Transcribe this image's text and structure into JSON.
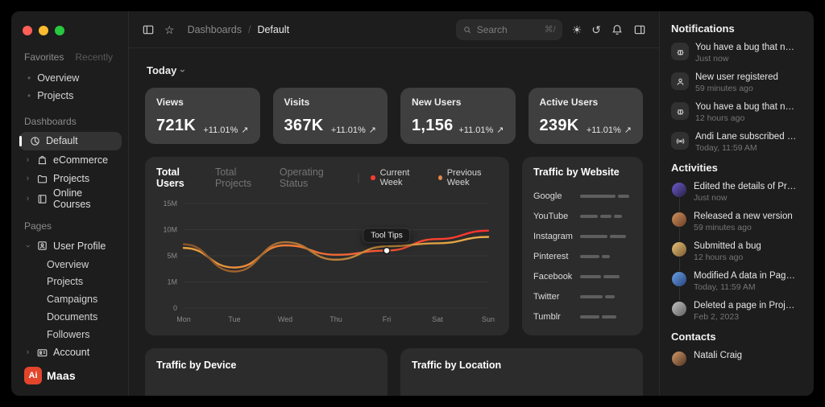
{
  "icons": {
    "trend_up": "↗",
    "sun": "☀",
    "history": "↺",
    "star": "☆",
    "chevron": "›",
    "bullet": "•",
    "divider": "|"
  },
  "window": {
    "traffic_lights": {
      "close": "#ff5f57",
      "minimize": "#febc2e",
      "zoom": "#28c840"
    }
  },
  "sidebar": {
    "tabs": {
      "favorites": "Favorites",
      "recently": "Recently"
    },
    "favorites_items": [
      {
        "label": "Overview"
      },
      {
        "label": "Projects"
      }
    ],
    "dashboards": {
      "title": "Dashboards",
      "items": [
        {
          "label": "Default"
        },
        {
          "label": "eCommerce"
        },
        {
          "label": "Projects"
        },
        {
          "label": "Online Courses"
        }
      ]
    },
    "pages": {
      "title": "Pages",
      "user_profile": {
        "label": "User Profile",
        "children": [
          {
            "label": "Overview"
          },
          {
            "label": "Projects"
          },
          {
            "label": "Campaigns"
          },
          {
            "label": "Documents"
          },
          {
            "label": "Followers"
          }
        ]
      },
      "account": {
        "label": "Account"
      }
    },
    "logo": {
      "badge": "Ai",
      "name": "Maas",
      "badge_color": "#e2452c"
    }
  },
  "header": {
    "breadcrumb": {
      "section": "Dashboards",
      "separator": "/",
      "current": "Default"
    },
    "search": {
      "placeholder": "Search",
      "shortcut": "⌘/"
    }
  },
  "main": {
    "period_filter": "Today",
    "stat_cards": [
      {
        "label": "Views",
        "value": "721K",
        "delta": "+11.01%"
      },
      {
        "label": "Visits",
        "value": "367K",
        "delta": "+11.01%"
      },
      {
        "label": "New Users",
        "value": "1,156",
        "delta": "+11.01%"
      },
      {
        "label": "Active Users",
        "value": "239K",
        "delta": "+11.01%"
      }
    ],
    "chart_tabs": {
      "active": "Total Users",
      "tab2": "Total Projects",
      "tab3": "Operating Status"
    },
    "legend": {
      "current": "Current Week",
      "previous": "Previous Week",
      "current_color": "#ff3b30",
      "previous_color": "#e0884a"
    },
    "traffic_website": {
      "title": "Traffic by Website",
      "rows": [
        {
          "label": "Google",
          "segments": [
            44,
            14
          ]
        },
        {
          "label": "YouTube",
          "segments": [
            22,
            14,
            10
          ]
        },
        {
          "label": "Instagram",
          "segments": [
            34,
            20
          ]
        },
        {
          "label": "Pinterest",
          "segments": [
            24,
            10
          ]
        },
        {
          "label": "Facebook",
          "segments": [
            26,
            20
          ]
        },
        {
          "label": "Twitter",
          "segments": [
            28,
            12
          ]
        },
        {
          "label": "Tumblr",
          "segments": [
            24,
            18
          ]
        }
      ]
    },
    "bottom_cards": [
      {
        "title": "Traffic by Device"
      },
      {
        "title": "Traffic by Location"
      }
    ]
  },
  "chart_data": {
    "type": "line",
    "title": "Total Users",
    "x": [
      "Mon",
      "Tue",
      "Wed",
      "Thu",
      "Fri",
      "Sat",
      "Sun"
    ],
    "y_ticks": [
      "0",
      "1M",
      "5M",
      "10M",
      "15M"
    ],
    "y_tick_values": [
      0,
      1,
      5,
      10,
      15
    ],
    "unit": "millions of users",
    "ylim": [
      0,
      15
    ],
    "grid": true,
    "legend_position": "top",
    "series": [
      {
        "name": "Current Week",
        "color_start": "#e8a33d",
        "color_end": "#ff2e2e",
        "values": [
          6.5,
          3.2,
          7.0,
          5.2,
          6.0,
          8.2,
          9.8
        ]
      },
      {
        "name": "Previous Week",
        "color_start": "#8a5228",
        "color_end": "#f0b04a",
        "values": [
          7.2,
          2.6,
          7.6,
          4.4,
          6.8,
          7.4,
          8.6
        ]
      }
    ],
    "tooltip": {
      "label": "Tool Tips",
      "series": 0,
      "index": 4
    }
  },
  "right_panel": {
    "notifications": {
      "title": "Notifications",
      "items": [
        {
          "icon": "bug",
          "text": "You have a bug that needs t…",
          "time": "Just now"
        },
        {
          "icon": "user",
          "text": "New user registered",
          "time": "59 minutes ago"
        },
        {
          "icon": "bug",
          "text": "You have a bug that needs t…",
          "time": "12 hours ago"
        },
        {
          "icon": "broadcast",
          "text": "Andi Lane subscribed to you",
          "time": "Today, 11:59 AM"
        }
      ]
    },
    "activities": {
      "title": "Activities",
      "items": [
        {
          "text": "Edited the details of Project X",
          "time": "Just now",
          "avatar": [
            "#6d5bd0",
            "#262040"
          ]
        },
        {
          "text": "Released a new version",
          "time": "59 minutes ago",
          "avatar": [
            "#d2925e",
            "#6a3e26"
          ]
        },
        {
          "text": "Submitted a bug",
          "time": "12 hours ago",
          "avatar": [
            "#e8c27a",
            "#7a5a30"
          ]
        },
        {
          "text": "Modified A data in Page X",
          "time": "Today, 11:59 AM",
          "avatar": [
            "#6aa2e8",
            "#28437a"
          ]
        },
        {
          "text": "Deleted a page in Project X",
          "time": "Feb 2, 2023",
          "avatar": [
            "#c4c4c4",
            "#5e5e5e"
          ]
        }
      ]
    },
    "contacts": {
      "title": "Contacts",
      "items": [
        {
          "name": "Natali Craig",
          "avatar": [
            "#d49a6a",
            "#4f3322"
          ]
        }
      ]
    }
  }
}
